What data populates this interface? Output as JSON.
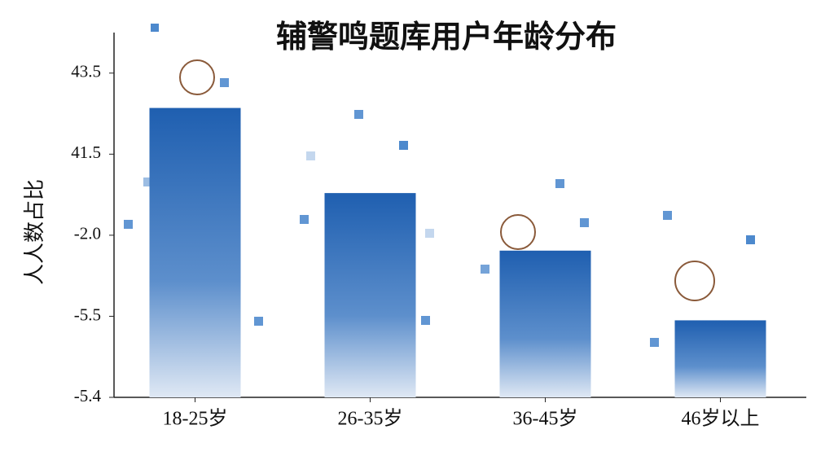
{
  "chart_data": {
    "type": "bar",
    "title": "辅警鸣题库用户年龄分布",
    "y_label": "人人数占比",
    "categories": [
      "18-25岁",
      "26-35岁",
      "36-45岁",
      "46岁以上"
    ],
    "values": [
      3.57,
      2.52,
      1.81,
      0.95
    ],
    "color": "#1f5fb0",
    "ylim": [
      0,
      4.5
    ],
    "yticks": [
      {
        "value": 0,
        "label": "-5.4"
      },
      {
        "value": 1,
        "label": "-5.5"
      },
      {
        "value": 2,
        "label": "-2.0"
      },
      {
        "value": 3,
        "label": "41.5"
      },
      {
        "value": 4,
        "label": "43.5"
      }
    ],
    "grid": false
  }
}
